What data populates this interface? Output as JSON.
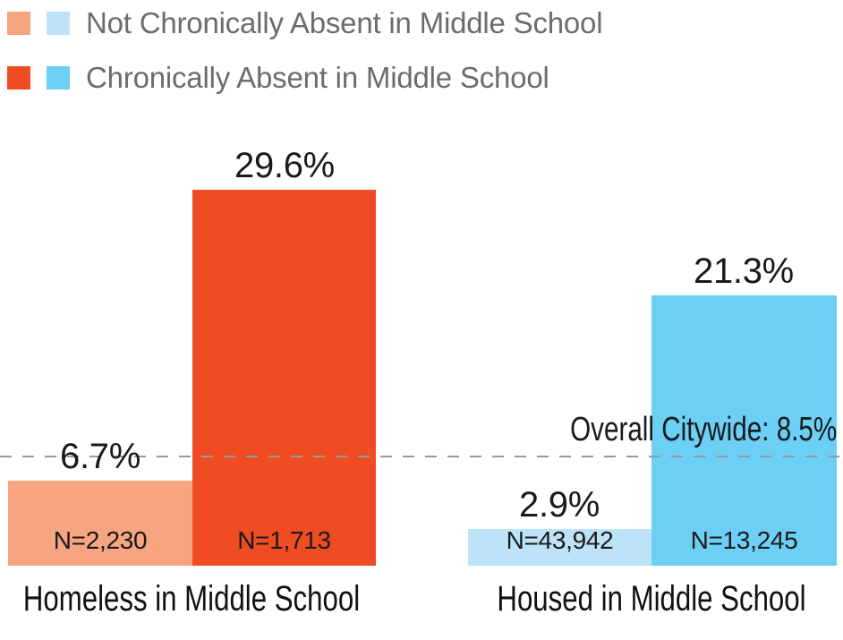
{
  "colors": {
    "salmon": "#F7A480",
    "red_orange": "#F04C23",
    "light_blue": "#BDE3F9",
    "sky_blue": "#6CCFF6",
    "dashed_line": "#999999",
    "legend_text": "#6A6D70",
    "label_text": "#1A1A1A"
  },
  "legend": {
    "items": [
      {
        "label": "Not Chronically Absent in Middle School",
        "swatch_left_color": "#F7A480",
        "swatch_right_color": "#BDE3F9"
      },
      {
        "label": "Chronically Absent in Middle School",
        "swatch_left_color": "#F04C23",
        "swatch_right_color": "#6CCFF6"
      }
    ]
  },
  "chart_data": {
    "type": "bar",
    "groups": [
      {
        "label": "Homeless in Middle School",
        "bars": [
          {
            "series": "Not Chronically Absent in Middle School",
            "value": 6.7,
            "value_label": "6.7%",
            "n_label": "N=2,230",
            "color": "#F7A480"
          },
          {
            "series": "Chronically Absent in Middle School",
            "value": 29.6,
            "value_label": "29.6%",
            "n_label": "N=1,713",
            "color": "#F04C23"
          }
        ]
      },
      {
        "label": "Housed in Middle School",
        "bars": [
          {
            "series": "Not Chronically Absent in Middle School",
            "value": 2.9,
            "value_label": "2.9%",
            "n_label": "N=43,942",
            "color": "#BDE3F9"
          },
          {
            "series": "Chronically Absent in Middle School",
            "value": 21.3,
            "value_label": "21.3%",
            "n_label": "N=13,245",
            "color": "#6CCFF6"
          }
        ]
      }
    ],
    "reference_line": {
      "label": "Overall Citywide: 8.5%",
      "value": 8.5
    },
    "ylim": [
      0,
      33
    ],
    "grid": false,
    "legend_position": "top-left",
    "unit": "%"
  }
}
